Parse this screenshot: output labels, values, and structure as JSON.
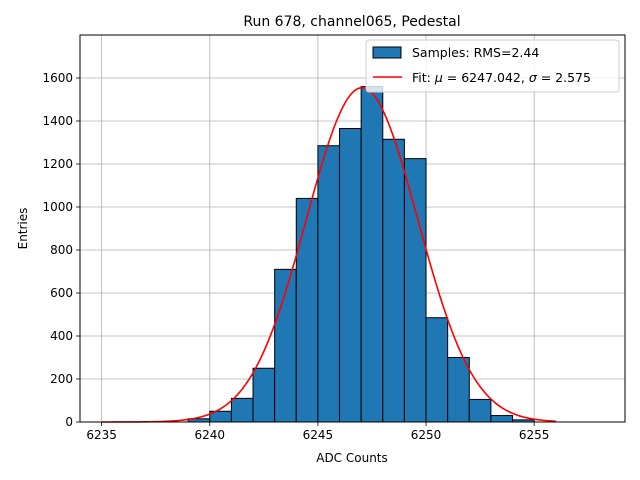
{
  "chart_data": {
    "type": "bar",
    "title": "Run 678, channel065, Pedestal",
    "xlabel": "ADC Counts",
    "ylabel": "Entries",
    "xlim": [
      6234,
      6259.2
    ],
    "ylim": [
      0,
      1800
    ],
    "xticks": [
      6235,
      6240,
      6245,
      6250,
      6255
    ],
    "yticks": [
      0,
      200,
      400,
      600,
      800,
      1000,
      1200,
      1400,
      1600
    ],
    "grid": true,
    "legend_position": "top-right",
    "bin_width": 1,
    "histogram": {
      "name": "Samples: RMS=2.44",
      "color": "#1f77b4",
      "bins": [
        {
          "left": 6239,
          "value": 15
        },
        {
          "left": 6240,
          "value": 50
        },
        {
          "left": 6241,
          "value": 110
        },
        {
          "left": 6242,
          "value": 250
        },
        {
          "left": 6243,
          "value": 710
        },
        {
          "left": 6244,
          "value": 1040
        },
        {
          "left": 6245,
          "value": 1285
        },
        {
          "left": 6246,
          "value": 1365
        },
        {
          "left": 6247,
          "value": 1560
        },
        {
          "left": 6248,
          "value": 1315
        },
        {
          "left": 6249,
          "value": 1225
        },
        {
          "left": 6250,
          "value": 485
        },
        {
          "left": 6251,
          "value": 300
        },
        {
          "left": 6252,
          "value": 105
        },
        {
          "left": 6253,
          "value": 30
        },
        {
          "left": 6254,
          "value": 10
        }
      ]
    },
    "fit": {
      "name_prefix": "Fit: ",
      "mu_symbol": "μ",
      "sigma_symbol": "σ",
      "mu_text": " = 6247.042, ",
      "sigma_text": " = 2.575",
      "color": "#ff0000",
      "mu": 6247.042,
      "sigma": 2.575,
      "amplitude": 1555,
      "x_range": [
        6235,
        6256
      ]
    }
  }
}
